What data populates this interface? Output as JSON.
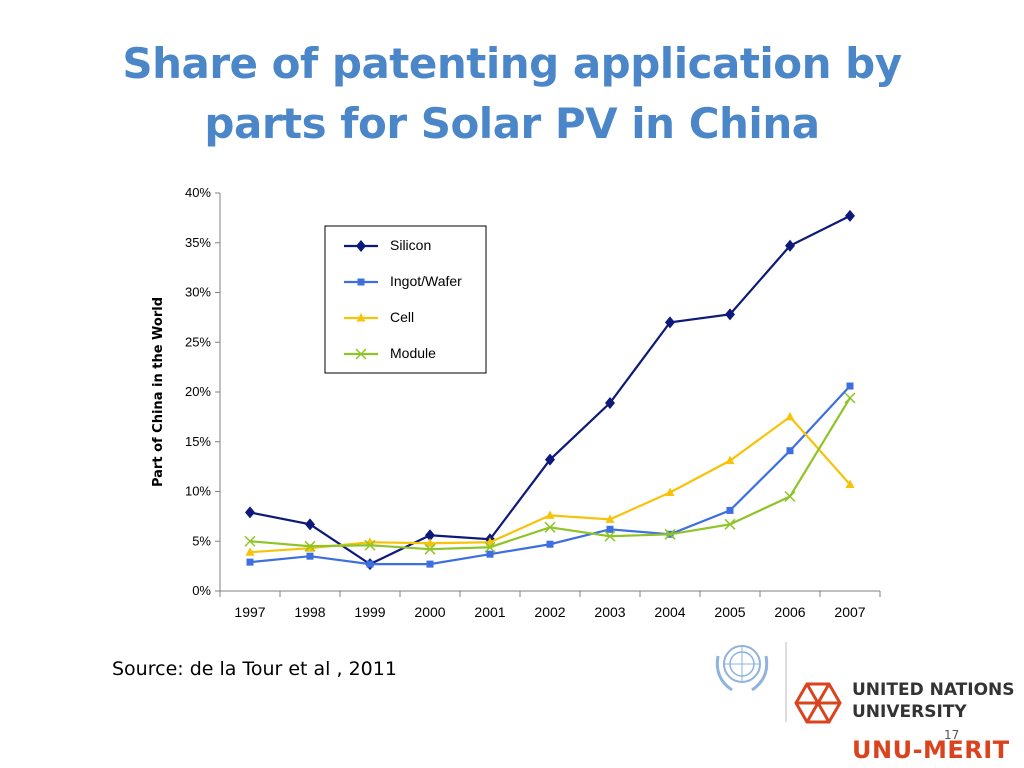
{
  "slide": {
    "title_line1": "Share of patenting application by",
    "title_line2": "parts for Solar PV in China",
    "source": "Source: de la Tour et al , 2011",
    "page_number": "17"
  },
  "logos": {
    "un_emblem": "un-emblem",
    "unu_name_line1": "UNITED NATIONS",
    "unu_name_line2": "UNIVERSITY",
    "merit": "UNU-MERIT",
    "accent_color": "#d9431e"
  },
  "chart_data": {
    "type": "line",
    "title": "",
    "xlabel": "",
    "ylabel": "Part of China in the World",
    "categories": [
      "1997",
      "1998",
      "1999",
      "2000",
      "2001",
      "2002",
      "2003",
      "2004",
      "2005",
      "2006",
      "2007"
    ],
    "ylim": [
      0,
      0.4
    ],
    "yticks": [
      "0%",
      "5%",
      "10%",
      "15%",
      "20%",
      "25%",
      "30%",
      "35%",
      "40%"
    ],
    "grid": false,
    "legend_position": "top-left-inside",
    "series": [
      {
        "name": "Silicon",
        "color": "#0d1a7a",
        "marker": "diamond",
        "values": [
          0.079,
          0.067,
          0.027,
          0.056,
          0.052,
          0.132,
          0.189,
          0.27,
          0.278,
          0.347,
          0.377
        ]
      },
      {
        "name": "Ingot/Wafer",
        "color": "#3d6fe0",
        "marker": "square",
        "values": [
          0.029,
          0.035,
          0.027,
          0.027,
          0.037,
          0.047,
          0.062,
          0.057,
          0.081,
          0.141,
          0.206
        ]
      },
      {
        "name": "Cell",
        "color": "#f7c20a",
        "marker": "triangle",
        "values": [
          0.039,
          0.043,
          0.049,
          0.048,
          0.049,
          0.076,
          0.072,
          0.099,
          0.131,
          0.175,
          0.107
        ]
      },
      {
        "name": "Module",
        "color": "#8fc427",
        "marker": "x",
        "values": [
          0.05,
          0.045,
          0.046,
          0.042,
          0.044,
          0.064,
          0.055,
          0.057,
          0.067,
          0.095,
          0.194
        ]
      }
    ]
  }
}
